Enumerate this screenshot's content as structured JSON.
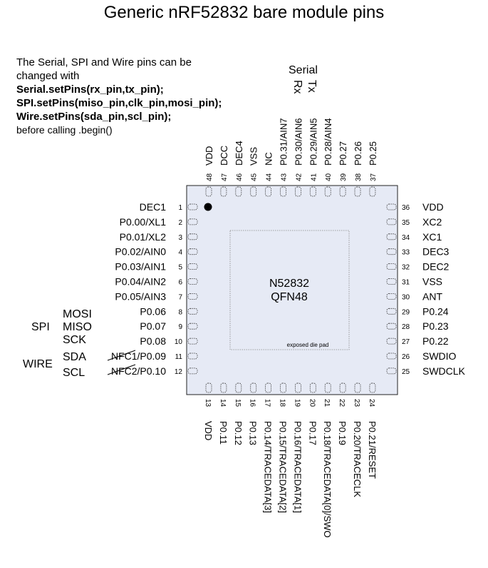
{
  "title": "Generic nRF52832 bare module pins",
  "note": {
    "line1": "The Serial, SPI and Wire pins can be",
    "line2": "changed with",
    "code1": "Serial.setPins(rx_pin,tx_pin);",
    "code2": "SPI.setPins(miso_pin,clk_pin,mosi_pin);",
    "code3": "Wire.setPins(sda_pin,scl_pin);",
    "line3": "before calling .begin()"
  },
  "serial": {
    "label": "Serial",
    "rx": "Rx",
    "tx": "Tx"
  },
  "chip": {
    "name": "N52832",
    "package": "QFN48",
    "pad_label": "exposed die pad",
    "body_color": "#e6eaf5",
    "outline_color": "#222222"
  },
  "bus_labels": {
    "spi": "SPI",
    "mosi": "MOSI",
    "miso": "MISO",
    "sck": "SCK",
    "wire": "WIRE",
    "sda": "SDA",
    "scl": "SCL"
  },
  "pins": {
    "left": [
      {
        "num": "1",
        "name": "DEC1"
      },
      {
        "num": "2",
        "name": "P0.00/XL1"
      },
      {
        "num": "3",
        "name": "P0.01/XL2"
      },
      {
        "num": "4",
        "name": "P0.02/AIN0"
      },
      {
        "num": "5",
        "name": "P0.03/AIN1"
      },
      {
        "num": "6",
        "name": "P0.04/AIN2"
      },
      {
        "num": "7",
        "name": "P0.05/AIN3"
      },
      {
        "num": "8",
        "name": "P0.06"
      },
      {
        "num": "9",
        "name": "P0.07"
      },
      {
        "num": "10",
        "name": "P0.08"
      },
      {
        "num": "11",
        "name": "NFC1/P0.09"
      },
      {
        "num": "12",
        "name": "NFC2/P0.10"
      }
    ],
    "bottom": [
      {
        "num": "13",
        "name": "VDD"
      },
      {
        "num": "14",
        "name": "P0.11"
      },
      {
        "num": "15",
        "name": "P0.12"
      },
      {
        "num": "16",
        "name": "P0.13"
      },
      {
        "num": "17",
        "name": "P0.14/TRACEDATA[3]"
      },
      {
        "num": "18",
        "name": "P0.15/TRACEDATA[2]"
      },
      {
        "num": "19",
        "name": "P0.16/TRACEDATA[1]"
      },
      {
        "num": "20",
        "name": "P0.17"
      },
      {
        "num": "21",
        "name": "P0.18/TRACEDATA[0]/SWO"
      },
      {
        "num": "22",
        "name": "P0.19"
      },
      {
        "num": "23",
        "name": "P0.20/TRACECLK"
      },
      {
        "num": "24",
        "name": "P0.21/RESET"
      }
    ],
    "right": [
      {
        "num": "25",
        "name": "SWDCLK"
      },
      {
        "num": "26",
        "name": "SWDIO"
      },
      {
        "num": "27",
        "name": "P0.22"
      },
      {
        "num": "28",
        "name": "P0.23"
      },
      {
        "num": "29",
        "name": "P0.24"
      },
      {
        "num": "30",
        "name": "ANT"
      },
      {
        "num": "31",
        "name": "VSS"
      },
      {
        "num": "32",
        "name": "DEC2"
      },
      {
        "num": "33",
        "name": "DEC3"
      },
      {
        "num": "34",
        "name": "XC1"
      },
      {
        "num": "35",
        "name": "XC2"
      },
      {
        "num": "36",
        "name": "VDD"
      }
    ],
    "top": [
      {
        "num": "37",
        "name": "P0.25"
      },
      {
        "num": "38",
        "name": "P0.26"
      },
      {
        "num": "39",
        "name": "P0.27"
      },
      {
        "num": "40",
        "name": "P0.28/AIN4"
      },
      {
        "num": "41",
        "name": "P0.29/AIN5"
      },
      {
        "num": "42",
        "name": "P0.30/AIN6"
      },
      {
        "num": "43",
        "name": "P0.31/AIN7"
      },
      {
        "num": "44",
        "name": "NC"
      },
      {
        "num": "45",
        "name": "VSS"
      },
      {
        "num": "46",
        "name": "DEC4"
      },
      {
        "num": "47",
        "name": "DCC"
      },
      {
        "num": "48",
        "name": "VDD"
      }
    ]
  }
}
